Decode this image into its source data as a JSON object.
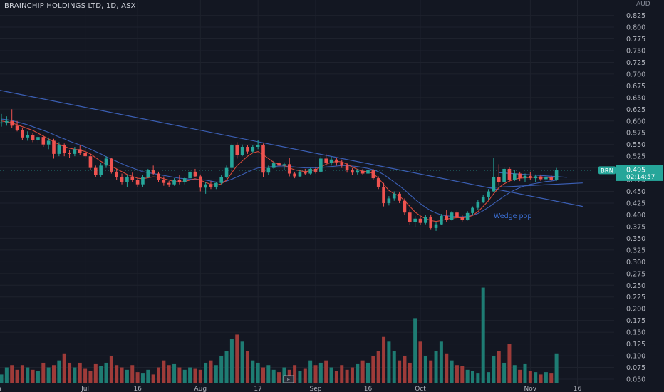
{
  "header": {
    "symbol_title": "BRAINCHIP HOLDINGS LTD, 1D, ASX",
    "currency": "AUD"
  },
  "chart_data": {
    "type": "candlestick",
    "title": "BRAINCHIP HOLDINGS LTD, 1D, ASX",
    "ylabel": "AUD",
    "ylim": [
      0.05,
      0.835
    ],
    "y_ticks": [
      "0.825",
      "0.800",
      "0.775",
      "0.750",
      "0.725",
      "0.700",
      "0.675",
      "0.650",
      "0.625",
      "0.600",
      "0.575",
      "0.550",
      "0.525",
      "0.500",
      "0.475",
      "0.450",
      "0.425",
      "0.400",
      "0.375",
      "0.350",
      "0.325",
      "0.300",
      "0.275",
      "0.250",
      "0.225",
      "0.200",
      "0.175",
      "0.150",
      "0.125",
      "0.100",
      "0.075",
      "0.050"
    ],
    "x_ticks": [
      {
        "label": "Jun",
        "index": -1
      },
      {
        "label": "Jul",
        "index": 16
      },
      {
        "label": "16",
        "index": 26
      },
      {
        "label": "Aug",
        "index": 38
      },
      {
        "label": "17",
        "index": 49
      },
      {
        "label": "Sep",
        "index": 60
      },
      {
        "label": "16",
        "index": 70
      },
      {
        "label": "Oct",
        "index": 80
      },
      {
        "label": "Nov",
        "index": 101
      },
      {
        "label": "16",
        "index": 110
      }
    ],
    "last_price_label": {
      "symbol": "BRN",
      "price": "0.495",
      "countdown": "02:14:57",
      "value": 0.495
    },
    "colors": {
      "up": "#26a69a",
      "down": "#ef5350",
      "vol_up": "#1e7c73",
      "vol_down": "#9e3b39",
      "trend": "#3b5fb5",
      "ma_short": "#d84a3a",
      "ma_long": "#3b5fb5",
      "background": "#131722",
      "label_bg": "#26a69a"
    },
    "annotations": [
      {
        "text": "Wedge pop",
        "index": 94,
        "value": 0.398
      }
    ],
    "trendlines": [
      {
        "from": [
          -1,
          0.667
        ],
        "to": [
          111,
          0.418
        ]
      },
      {
        "from": [
          93,
          0.458
        ],
        "to": [
          111,
          0.468
        ]
      },
      {
        "from": [
          95,
          0.49
        ],
        "to": [
          108,
          0.48
        ]
      }
    ],
    "candles": [
      [
        0.595,
        0.615,
        0.588,
        0.597
      ],
      [
        0.597,
        0.61,
        0.59,
        0.6
      ],
      [
        0.6,
        0.625,
        0.585,
        0.59
      ],
      [
        0.59,
        0.6,
        0.578,
        0.58
      ],
      [
        0.58,
        0.585,
        0.56,
        0.565
      ],
      [
        0.565,
        0.578,
        0.558,
        0.57
      ],
      [
        0.57,
        0.575,
        0.555,
        0.56
      ],
      [
        0.56,
        0.572,
        0.552,
        0.566
      ],
      [
        0.566,
        0.57,
        0.545,
        0.55
      ],
      [
        0.55,
        0.565,
        0.54,
        0.558
      ],
      [
        0.558,
        0.562,
        0.52,
        0.53
      ],
      [
        0.53,
        0.555,
        0.525,
        0.548
      ],
      [
        0.548,
        0.552,
        0.525,
        0.532
      ],
      [
        0.532,
        0.538,
        0.522,
        0.53
      ],
      [
        0.53,
        0.545,
        0.525,
        0.54
      ],
      [
        0.54,
        0.548,
        0.528,
        0.532
      ],
      [
        0.532,
        0.545,
        0.52,
        0.525
      ],
      [
        0.525,
        0.53,
        0.495,
        0.5
      ],
      [
        0.5,
        0.505,
        0.48,
        0.485
      ],
      [
        0.485,
        0.51,
        0.48,
        0.505
      ],
      [
        0.505,
        0.525,
        0.5,
        0.52
      ],
      [
        0.52,
        0.522,
        0.488,
        0.492
      ],
      [
        0.492,
        0.498,
        0.475,
        0.48
      ],
      [
        0.48,
        0.488,
        0.465,
        0.47
      ],
      [
        0.47,
        0.485,
        0.46,
        0.48
      ],
      [
        0.48,
        0.49,
        0.47,
        0.475
      ],
      [
        0.475,
        0.478,
        0.46,
        0.465
      ],
      [
        0.465,
        0.485,
        0.46,
        0.48
      ],
      [
        0.48,
        0.498,
        0.478,
        0.495
      ],
      [
        0.495,
        0.505,
        0.485,
        0.488
      ],
      [
        0.488,
        0.492,
        0.47,
        0.475
      ],
      [
        0.475,
        0.482,
        0.462,
        0.468
      ],
      [
        0.468,
        0.472,
        0.46,
        0.465
      ],
      [
        0.465,
        0.478,
        0.462,
        0.475
      ],
      [
        0.475,
        0.485,
        0.465,
        0.47
      ],
      [
        0.47,
        0.48,
        0.465,
        0.478
      ],
      [
        0.478,
        0.495,
        0.475,
        0.492
      ],
      [
        0.492,
        0.498,
        0.48,
        0.482
      ],
      [
        0.482,
        0.486,
        0.45,
        0.458
      ],
      [
        0.458,
        0.47,
        0.445,
        0.465
      ],
      [
        0.465,
        0.472,
        0.455,
        0.46
      ],
      [
        0.46,
        0.47,
        0.455,
        0.468
      ],
      [
        0.468,
        0.485,
        0.465,
        0.48
      ],
      [
        0.48,
        0.505,
        0.478,
        0.5
      ],
      [
        0.5,
        0.552,
        0.495,
        0.548
      ],
      [
        0.548,
        0.555,
        0.52,
        0.528
      ],
      [
        0.528,
        0.55,
        0.525,
        0.545
      ],
      [
        0.545,
        0.548,
        0.53,
        0.535
      ],
      [
        0.535,
        0.548,
        0.532,
        0.545
      ],
      [
        0.545,
        0.56,
        0.54,
        0.548
      ],
      [
        0.548,
        0.552,
        0.48,
        0.49
      ],
      [
        0.49,
        0.505,
        0.485,
        0.5
      ],
      [
        0.5,
        0.515,
        0.498,
        0.51
      ],
      [
        0.51,
        0.515,
        0.5,
        0.505
      ],
      [
        0.505,
        0.512,
        0.495,
        0.508
      ],
      [
        0.508,
        0.522,
        0.482,
        0.488
      ],
      [
        0.488,
        0.492,
        0.478,
        0.482
      ],
      [
        0.482,
        0.496,
        0.48,
        0.492
      ],
      [
        0.492,
        0.498,
        0.485,
        0.488
      ],
      [
        0.488,
        0.5,
        0.486,
        0.498
      ],
      [
        0.498,
        0.502,
        0.488,
        0.492
      ],
      [
        0.492,
        0.525,
        0.49,
        0.52
      ],
      [
        0.52,
        0.53,
        0.505,
        0.51
      ],
      [
        0.51,
        0.524,
        0.505,
        0.518
      ],
      [
        0.518,
        0.522,
        0.505,
        0.512
      ],
      [
        0.512,
        0.518,
        0.5,
        0.505
      ],
      [
        0.505,
        0.51,
        0.49,
        0.495
      ],
      [
        0.495,
        0.5,
        0.485,
        0.49
      ],
      [
        0.49,
        0.498,
        0.486,
        0.494
      ],
      [
        0.494,
        0.498,
        0.485,
        0.488
      ],
      [
        0.488,
        0.5,
        0.485,
        0.496
      ],
      [
        0.496,
        0.498,
        0.475,
        0.478
      ],
      [
        0.478,
        0.482,
        0.455,
        0.46
      ],
      [
        0.46,
        0.468,
        0.418,
        0.425
      ],
      [
        0.425,
        0.44,
        0.42,
        0.435
      ],
      [
        0.435,
        0.45,
        0.43,
        0.445
      ],
      [
        0.445,
        0.448,
        0.425,
        0.43
      ],
      [
        0.43,
        0.435,
        0.4,
        0.405
      ],
      [
        0.405,
        0.412,
        0.378,
        0.385
      ],
      [
        0.385,
        0.398,
        0.375,
        0.392
      ],
      [
        0.392,
        0.396,
        0.378,
        0.383
      ],
      [
        0.383,
        0.4,
        0.38,
        0.396
      ],
      [
        0.396,
        0.4,
        0.368,
        0.372
      ],
      [
        0.372,
        0.385,
        0.366,
        0.38
      ],
      [
        0.38,
        0.402,
        0.378,
        0.398
      ],
      [
        0.398,
        0.41,
        0.385,
        0.39
      ],
      [
        0.39,
        0.408,
        0.388,
        0.405
      ],
      [
        0.405,
        0.41,
        0.392,
        0.395
      ],
      [
        0.395,
        0.4,
        0.386,
        0.39
      ],
      [
        0.39,
        0.408,
        0.388,
        0.404
      ],
      [
        0.404,
        0.418,
        0.4,
        0.415
      ],
      [
        0.415,
        0.432,
        0.41,
        0.428
      ],
      [
        0.428,
        0.442,
        0.425,
        0.438
      ],
      [
        0.438,
        0.455,
        0.432,
        0.45
      ],
      [
        0.45,
        0.522,
        0.448,
        0.48
      ],
      [
        0.48,
        0.508,
        0.462,
        0.47
      ],
      [
        0.47,
        0.502,
        0.466,
        0.498
      ],
      [
        0.498,
        0.502,
        0.47,
        0.475
      ],
      [
        0.475,
        0.495,
        0.472,
        0.488
      ],
      [
        0.488,
        0.492,
        0.472,
        0.478
      ],
      [
        0.478,
        0.488,
        0.47,
        0.483
      ],
      [
        0.483,
        0.492,
        0.475,
        0.478
      ],
      [
        0.478,
        0.486,
        0.47,
        0.482
      ],
      [
        0.482,
        0.486,
        0.472,
        0.476
      ],
      [
        0.476,
        0.485,
        0.47,
        0.48
      ],
      [
        0.48,
        0.484,
        0.472,
        0.475
      ],
      [
        0.475,
        0.5,
        0.472,
        0.495
      ]
    ],
    "volume": [
      0.06,
      0.075,
      0.08,
      0.07,
      0.08,
      0.075,
      0.07,
      0.068,
      0.085,
      0.075,
      0.08,
      0.09,
      0.105,
      0.085,
      0.075,
      0.085,
      0.072,
      0.068,
      0.082,
      0.078,
      0.085,
      0.1,
      0.08,
      0.075,
      0.07,
      0.08,
      0.065,
      0.062,
      0.07,
      0.06,
      0.075,
      0.09,
      0.08,
      0.082,
      0.075,
      0.07,
      0.075,
      0.072,
      0.07,
      0.085,
      0.09,
      0.08,
      0.1,
      0.11,
      0.135,
      0.145,
      0.13,
      0.11,
      0.09,
      0.085,
      0.075,
      0.08,
      0.07,
      0.065,
      0.075,
      0.07,
      0.08,
      0.068,
      0.072,
      0.09,
      0.08,
      0.085,
      0.09,
      0.075,
      0.068,
      0.08,
      0.07,
      0.075,
      0.082,
      0.09,
      0.085,
      0.1,
      0.11,
      0.14,
      0.13,
      0.11,
      0.09,
      0.1,
      0.085,
      0.18,
      0.13,
      0.1,
      0.09,
      0.11,
      0.13,
      0.105,
      0.09,
      0.08,
      0.078,
      0.07,
      0.068,
      0.062,
      0.07,
      0.065,
      0.1,
      0.11,
      0.085,
      0.125,
      0.08,
      0.07,
      0.082,
      0.068,
      0.065,
      0.06,
      0.065,
      0.062,
      0.105
    ],
    "volume_big": {
      "index": 92,
      "value": 0.245
    },
    "ma_short": [
      0.6,
      0.598,
      0.596,
      0.592,
      0.588,
      0.584,
      0.58,
      0.574,
      0.568,
      0.562,
      0.556,
      0.55,
      0.546,
      0.542,
      0.54,
      0.538,
      0.535,
      0.53,
      0.522,
      0.514,
      0.508,
      0.504,
      0.498,
      0.492,
      0.486,
      0.482,
      0.478,
      0.477,
      0.479,
      0.481,
      0.48,
      0.477,
      0.474,
      0.471,
      0.47,
      0.471,
      0.474,
      0.477,
      0.474,
      0.469,
      0.465,
      0.463,
      0.466,
      0.474,
      0.49,
      0.505,
      0.515,
      0.525,
      0.532,
      0.535,
      0.528,
      0.52,
      0.512,
      0.508,
      0.505,
      0.5,
      0.496,
      0.494,
      0.492,
      0.494,
      0.496,
      0.502,
      0.508,
      0.512,
      0.514,
      0.513,
      0.508,
      0.502,
      0.497,
      0.493,
      0.492,
      0.488,
      0.478,
      0.465,
      0.452,
      0.445,
      0.44,
      0.43,
      0.418,
      0.406,
      0.398,
      0.392,
      0.388,
      0.386,
      0.388,
      0.391,
      0.393,
      0.394,
      0.394,
      0.395,
      0.399,
      0.407,
      0.418,
      0.43,
      0.445,
      0.458,
      0.466,
      0.472,
      0.476,
      0.478,
      0.479,
      0.48,
      0.48,
      0.48,
      0.48,
      0.479,
      0.482
    ],
    "ma_long": [
      0.604,
      0.603,
      0.601,
      0.598,
      0.595,
      0.592,
      0.588,
      0.584,
      0.58,
      0.576,
      0.571,
      0.566,
      0.562,
      0.557,
      0.553,
      0.549,
      0.545,
      0.54,
      0.535,
      0.53,
      0.524,
      0.519,
      0.514,
      0.509,
      0.504,
      0.5,
      0.496,
      0.492,
      0.49,
      0.488,
      0.486,
      0.484,
      0.482,
      0.48,
      0.478,
      0.477,
      0.476,
      0.476,
      0.475,
      0.474,
      0.472,
      0.47,
      0.47,
      0.472,
      0.476,
      0.481,
      0.486,
      0.491,
      0.496,
      0.5,
      0.501,
      0.502,
      0.503,
      0.504,
      0.504,
      0.503,
      0.502,
      0.501,
      0.5,
      0.5,
      0.5,
      0.501,
      0.502,
      0.503,
      0.504,
      0.505,
      0.505,
      0.504,
      0.503,
      0.501,
      0.499,
      0.496,
      0.492,
      0.486,
      0.478,
      0.47,
      0.462,
      0.453,
      0.443,
      0.433,
      0.424,
      0.416,
      0.409,
      0.404,
      0.4,
      0.398,
      0.397,
      0.396,
      0.396,
      0.397,
      0.399,
      0.403,
      0.409,
      0.416,
      0.424,
      0.432,
      0.44,
      0.447,
      0.453,
      0.458,
      0.462,
      0.465,
      0.467,
      0.469,
      0.471,
      0.472,
      0.474
    ]
  }
}
